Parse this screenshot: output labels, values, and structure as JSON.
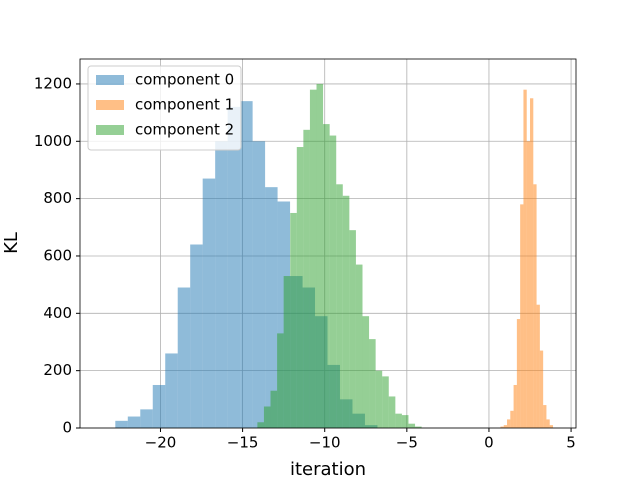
{
  "chart_data": {
    "type": "histogram",
    "x_label": "iteration",
    "y_label": "KL",
    "xlim": [
      -24.9,
      5.3
    ],
    "ylim": [
      0,
      1287
    ],
    "xticks": [
      {
        "value": -20,
        "label": "−20"
      },
      {
        "value": -15,
        "label": "−15"
      },
      {
        "value": -10,
        "label": "−10"
      },
      {
        "value": -5,
        "label": "−5"
      },
      0,
      5
    ],
    "yticks": [
      0,
      200,
      400,
      600,
      800,
      1000,
      1200
    ],
    "grid": true,
    "legend": "upper left",
    "opacity": 0.5,
    "series": [
      {
        "name": "component 0",
        "color": "#1f77b4",
        "bins": [
          -22.75,
          -21.99,
          -21.23,
          -20.47,
          -19.71,
          -18.95,
          -18.19,
          -17.43,
          -16.67,
          -15.91,
          -15.15,
          -14.39,
          -13.63,
          -12.87,
          -12.11,
          -11.35,
          -10.59,
          -9.83,
          -9.07,
          -8.31,
          -7.55,
          -6.79
        ],
        "values": [
          25,
          40,
          65,
          150,
          260,
          490,
          640,
          870,
          1000,
          1120,
          1140,
          1000,
          840,
          790,
          530,
          490,
          390,
          220,
          100,
          50,
          10
        ]
      },
      {
        "name": "component 1",
        "color": "#ff7f0e",
        "bins": [
          0.7,
          0.9,
          1.1,
          1.3,
          1.5,
          1.7,
          1.9,
          2.1,
          2.3,
          2.5,
          2.7,
          2.9,
          3.1,
          3.3,
          3.5,
          3.7,
          3.9
        ],
        "values": [
          5,
          10,
          30,
          60,
          150,
          380,
          780,
          1180,
          1000,
          1150,
          850,
          430,
          270,
          80,
          30,
          10
        ]
      },
      {
        "name": "component 2",
        "color": "#2ca02c",
        "bins": [
          -14.1,
          -13.7,
          -13.3,
          -12.9,
          -12.5,
          -12.1,
          -11.7,
          -11.3,
          -10.9,
          -10.5,
          -10.1,
          -9.7,
          -9.3,
          -8.9,
          -8.5,
          -8.1,
          -7.7,
          -7.3,
          -6.9,
          -6.5,
          -6.1,
          -5.7,
          -5.3,
          -4.9,
          -4.5,
          -4.1
        ],
        "values": [
          20,
          75,
          130,
          330,
          530,
          750,
          980,
          1040,
          1180,
          1200,
          1060,
          1020,
          850,
          810,
          690,
          570,
          390,
          310,
          200,
          180,
          110,
          50,
          45,
          15,
          5
        ]
      }
    ]
  }
}
